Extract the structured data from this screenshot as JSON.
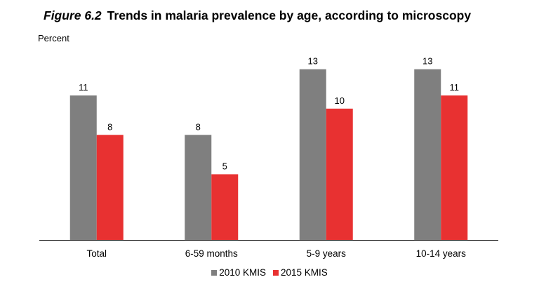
{
  "figure": {
    "number": "Figure 6.2",
    "title": "Trends in malaria prevalence by age, according to microscopy",
    "unit_label": "Percent"
  },
  "colors": {
    "series_2010": "#7f7f7f",
    "series_2015": "#e83131",
    "axis": "#000000"
  },
  "chart_data": {
    "type": "bar",
    "title": "Trends in malaria prevalence by age, according to microscopy",
    "xlabel": "",
    "ylabel": "Percent",
    "ylim": [
      0,
      14
    ],
    "grid": false,
    "legend_position": "bottom",
    "categories": [
      "Total",
      "6-59 months",
      "5-9 years",
      "10-14 years"
    ],
    "series": [
      {
        "name": "2010 KMIS",
        "values": [
          11,
          8,
          13,
          13
        ],
        "labels": [
          "11",
          "8",
          "13",
          "13"
        ],
        "color": "#7f7f7f"
      },
      {
        "name": "2015 KMIS",
        "values": [
          8,
          5,
          10,
          11
        ],
        "labels": [
          "8",
          "5",
          "10",
          "11"
        ],
        "color": "#e83131"
      }
    ]
  }
}
